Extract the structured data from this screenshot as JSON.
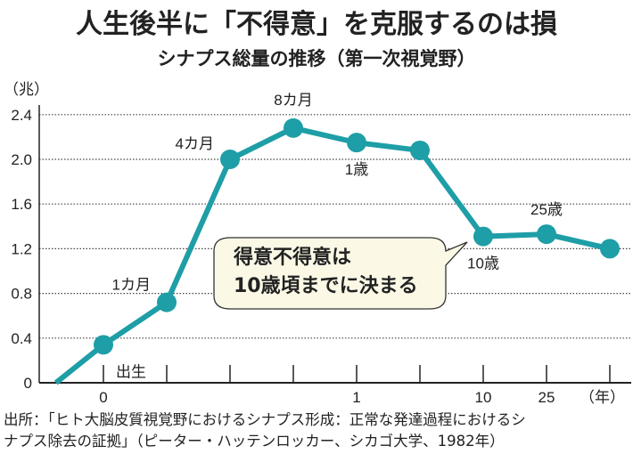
{
  "title": "人生後半に「不得意」を克服するのは損",
  "subtitle": "シナプス総量の推移（第一次視覚野）",
  "footer": {
    "line1": "出所：「ヒト大脳皮質視覚野におけるシナプス形成：正常な発達過程におけるシ",
    "line2": "ナプス除去の証拠」（ピーター・ハッテンロッカー、シカゴ大学、1982年）"
  },
  "callout": {
    "line1": "得意不得意は",
    "line2": "10歳頃までに決まる"
  },
  "chart_data": {
    "type": "line",
    "title": "シナプス総量の推移（第一次視覚野）",
    "ylabel": "（兆）",
    "xlabel": "（年）",
    "ylim": [
      0,
      2.4
    ],
    "yticks": [
      "0",
      "0.4",
      "0.8",
      "1.2",
      "1.6",
      "2.0",
      "2.4"
    ],
    "ytick_values": [
      0,
      0.4,
      0.8,
      1.2,
      1.6,
      2.0,
      2.4
    ],
    "xticks": [
      "0",
      "",
      "",
      "",
      "1",
      "",
      "10",
      "25"
    ],
    "grid": "horizontal dotted",
    "color": "#1e9ea6",
    "start_value": 0,
    "points": [
      {
        "label": "出生",
        "value": 0.34
      },
      {
        "label": "1カ月",
        "value": 0.72
      },
      {
        "label": "4カ月",
        "value": 2.0
      },
      {
        "label": "8カ月",
        "value": 2.28
      },
      {
        "label": "1歳",
        "value": 2.15
      },
      {
        "label": "",
        "value": 2.08
      },
      {
        "label": "10歳",
        "value": 1.31
      },
      {
        "label": "25歳",
        "value": 1.33
      },
      {
        "label": "",
        "value": 1.2
      }
    ]
  }
}
